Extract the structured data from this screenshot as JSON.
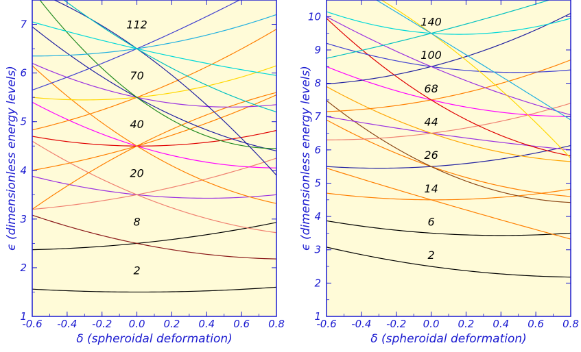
{
  "chart_data": [
    {
      "type": "line",
      "xlabel": "δ (spheroidal deformation)",
      "ylabel": "ϵ (dimensionless energy levels)",
      "xlim": [
        -0.6,
        0.8
      ],
      "ylim": [
        1,
        7.5
      ],
      "xticks": [
        "-0.6",
        "-0.4",
        "-0.2",
        "0.0",
        "0.2",
        "0.4",
        "0.6",
        "0.8"
      ],
      "yticks": [
        "1",
        "2",
        "3",
        "4",
        "5",
        "6",
        "7"
      ],
      "magic_numbers": [
        {
          "text": "2",
          "x": 0.0,
          "y": 1.95
        },
        {
          "text": "8",
          "x": 0.0,
          "y": 2.95
        },
        {
          "text": "20",
          "x": 0.0,
          "y": 3.95
        },
        {
          "text": "40",
          "x": 0.0,
          "y": 4.95
        },
        {
          "text": "70",
          "x": 0.0,
          "y": 5.95
        },
        {
          "text": "112",
          "x": 0.0,
          "y": 7.0
        }
      ],
      "series": [
        {
          "color": "#000000",
          "x": [
            -0.6,
            0.0,
            0.8
          ],
          "y": [
            1.56,
            1.5,
            1.6
          ]
        },
        {
          "color": "#000000",
          "x": [
            -0.6,
            0.0,
            0.8
          ],
          "y": [
            2.37,
            2.5,
            2.93
          ]
        },
        {
          "color": "#8b1a1a",
          "x": [
            -0.6,
            0.0,
            0.8
          ],
          "y": [
            3.08,
            2.5,
            2.18
          ]
        },
        {
          "color": "#f08070",
          "x": [
            -0.6,
            0.0,
            0.8
          ],
          "y": [
            3.2,
            3.5,
            4.25
          ]
        },
        {
          "color": "#9a30e0",
          "x": [
            -0.6,
            0.0,
            0.8
          ],
          "y": [
            3.88,
            3.5,
            3.5
          ]
        },
        {
          "color": "#f08070",
          "x": [
            -0.6,
            0.0,
            0.8
          ],
          "y": [
            4.6,
            3.5,
            2.72
          ]
        },
        {
          "color": "#ff7f00",
          "x": [
            -0.6,
            0.0,
            0.8
          ],
          "y": [
            4.0,
            4.5,
            5.55
          ]
        },
        {
          "color": "#ff7f00",
          "x": [
            -0.6,
            0.0,
            0.8
          ],
          "y": [
            3.2,
            4.5,
            5.6
          ]
        },
        {
          "color": "#e00000",
          "x": [
            -0.6,
            0.0,
            0.8
          ],
          "y": [
            4.7,
            4.5,
            4.82
          ]
        },
        {
          "color": "#ff00ff",
          "x": [
            -0.6,
            0.0,
            0.8
          ],
          "y": [
            5.4,
            4.5,
            4.05
          ]
        },
        {
          "color": "#ff7f00",
          "x": [
            -0.6,
            0.0,
            0.8
          ],
          "y": [
            6.15,
            4.5,
            3.32
          ]
        },
        {
          "color": "#ff7f00",
          "x": [
            -0.6,
            0.0,
            0.8
          ],
          "y": [
            4.83,
            5.5,
            6.9
          ]
        },
        {
          "color": "#ffd700",
          "x": [
            -0.6,
            0.0,
            0.8
          ],
          "y": [
            5.5,
            5.5,
            6.15
          ]
        },
        {
          "color": "#9a30e0",
          "x": [
            -0.6,
            0.0,
            0.8
          ],
          "y": [
            6.2,
            5.5,
            5.35
          ]
        },
        {
          "color": "#2020a0",
          "x": [
            -0.6,
            0.0,
            0.8
          ],
          "y": [
            6.95,
            5.5,
            4.4
          ]
        },
        {
          "color": "#228b22",
          "x": [
            -0.6,
            0.0,
            0.8
          ],
          "y": [
            7.7,
            5.5,
            4.45
          ]
        },
        {
          "color": "#4040d0",
          "x": [
            -0.6,
            0.0,
            0.8
          ],
          "y": [
            5.65,
            6.5,
            7.9
          ]
        },
        {
          "color": "#20b0e0",
          "x": [
            -0.6,
            0.0,
            0.8
          ],
          "y": [
            6.35,
            6.5,
            7.2
          ]
        },
        {
          "color": "#00d8d8",
          "x": [
            -0.6,
            0.0,
            0.8
          ],
          "y": [
            7.05,
            6.5,
            5.95
          ]
        },
        {
          "color": "#2020a0",
          "x": [
            -0.6,
            0.0,
            0.8
          ],
          "y": [
            7.7,
            6.5,
            3.9
          ]
        },
        {
          "color": "#00c0c0",
          "x": [
            -0.6,
            0.0,
            0.8
          ],
          "y": [
            8.0,
            6.5,
            5.2
          ]
        }
      ]
    },
    {
      "type": "line",
      "xlabel": "δ (spheroidal deformation)",
      "ylabel": "ϵ (dimensionless energy levels)",
      "xlim": [
        -0.6,
        0.8
      ],
      "ylim": [
        1,
        10.5
      ],
      "xticks": [
        "-0.6",
        "-0.4",
        "-0.2",
        "0.0",
        "0.2",
        "0.4",
        "0.6",
        "0.8"
      ],
      "yticks": [
        "1",
        "2",
        "3",
        "4",
        "5",
        "6",
        "7",
        "8",
        "9",
        "10"
      ],
      "magic_numbers": [
        {
          "text": "2",
          "x": 0.0,
          "y": 2.85
        },
        {
          "text": "6",
          "x": 0.0,
          "y": 3.85
        },
        {
          "text": "14",
          "x": 0.0,
          "y": 4.85
        },
        {
          "text": "26",
          "x": 0.0,
          "y": 5.85
        },
        {
          "text": "44",
          "x": 0.0,
          "y": 6.85
        },
        {
          "text": "68",
          "x": 0.0,
          "y": 7.85
        },
        {
          "text": "100",
          "x": 0.0,
          "y": 8.85
        },
        {
          "text": "140",
          "x": 0.0,
          "y": 9.85
        }
      ],
      "series": [
        {
          "color": "#000000",
          "x": [
            -0.6,
            0.0,
            0.8
          ],
          "y": [
            3.08,
            2.5,
            2.18
          ]
        },
        {
          "color": "#000000",
          "x": [
            -0.6,
            0.0,
            0.8
          ],
          "y": [
            3.87,
            3.5,
            3.5
          ]
        },
        {
          "color": "#ff7f00",
          "x": [
            -0.6,
            0.0,
            0.8
          ],
          "y": [
            4.7,
            4.5,
            4.82
          ]
        },
        {
          "color": "#ff7f00",
          "x": [
            -0.6,
            0.0,
            0.8
          ],
          "y": [
            5.45,
            4.5,
            3.32
          ]
        },
        {
          "color": "#2020a0",
          "x": [
            -0.6,
            0.0,
            0.8
          ],
          "y": [
            5.5,
            5.5,
            6.13
          ]
        },
        {
          "color": "#ff7f00",
          "x": [
            -0.6,
            0.0,
            0.8
          ],
          "y": [
            6.9,
            5.5,
            4.6
          ]
        },
        {
          "color": "#8b4513",
          "x": [
            -0.6,
            0.0,
            0.8
          ],
          "y": [
            7.48,
            5.5,
            4.42
          ]
        },
        {
          "color": "#f08070",
          "x": [
            -0.6,
            0.0,
            0.8
          ],
          "y": [
            6.3,
            6.5,
            7.4
          ]
        },
        {
          "color": "#9a30e0",
          "x": [
            -0.6,
            0.0,
            0.8
          ],
          "y": [
            7.0,
            6.5,
            6.0
          ]
        },
        {
          "color": "#ffa500",
          "x": [
            -0.6,
            0.0,
            0.8
          ],
          "y": [
            7.9,
            6.5,
            5.65
          ]
        },
        {
          "color": "#ff7f00",
          "x": [
            -0.6,
            0.0,
            0.8
          ],
          "y": [
            7.15,
            7.5,
            8.7
          ]
        },
        {
          "color": "#ff00ff",
          "x": [
            -0.6,
            0.0,
            0.8
          ],
          "y": [
            8.5,
            7.5,
            7.0
          ]
        },
        {
          "color": "#e00000",
          "x": [
            -0.6,
            0.0,
            0.8
          ],
          "y": [
            9.95,
            7.5,
            5.82
          ]
        },
        {
          "color": "#2020a0",
          "x": [
            -0.6,
            0.0,
            0.8
          ],
          "y": [
            7.98,
            8.5,
            10.1
          ]
        },
        {
          "color": "#4040d0",
          "x": [
            -0.6,
            0.0,
            0.8
          ],
          "y": [
            9.2,
            8.5,
            8.4
          ]
        },
        {
          "color": "#9a30e0",
          "x": [
            -0.6,
            0.0,
            0.8
          ],
          "y": [
            10.0,
            8.5,
            7.05
          ]
        },
        {
          "color": "#00c0c0",
          "x": [
            -0.6,
            0.0,
            0.8
          ],
          "y": [
            8.75,
            9.5,
            10.7
          ]
        },
        {
          "color": "#00d8d8",
          "x": [
            -0.6,
            0.0,
            0.8
          ],
          "y": [
            10.15,
            9.5,
            9.95
          ]
        },
        {
          "color": "#ffd700",
          "x": [
            -0.6,
            0.0,
            0.8
          ],
          "y": [
            11.4,
            9.5,
            5.75
          ]
        },
        {
          "color": "#20b0e0",
          "x": [
            -0.6,
            0.0,
            0.8
          ],
          "y": [
            11.4,
            9.5,
            6.9
          ]
        }
      ]
    }
  ]
}
